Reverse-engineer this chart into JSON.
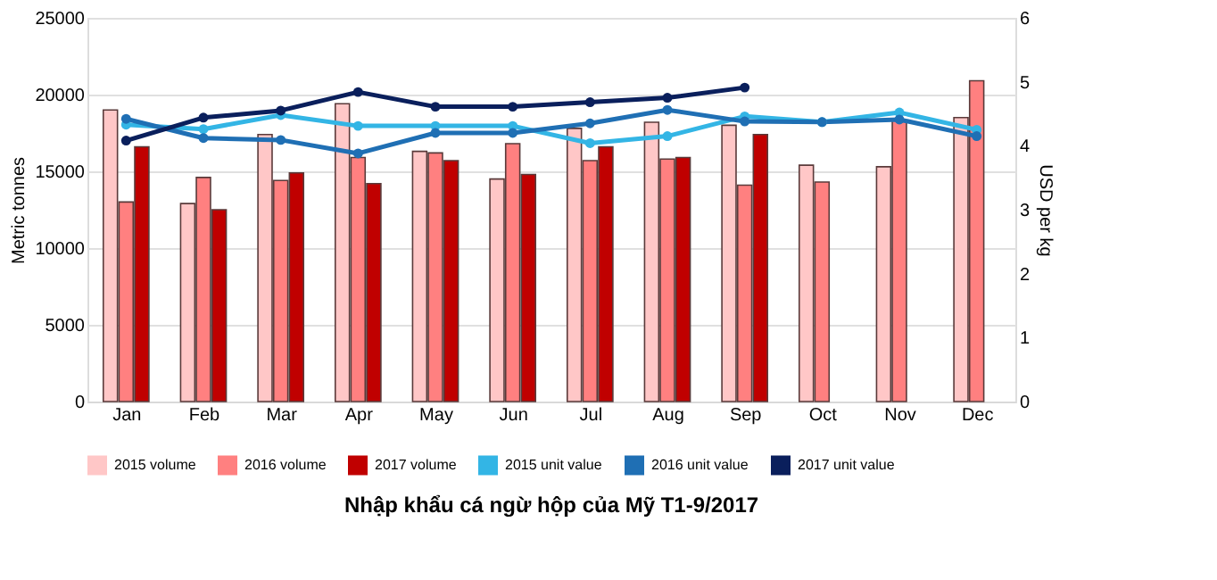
{
  "chart_data": {
    "type": "bar",
    "title": "Nhập khẩu cá ngừ hộp của Mỹ T1-9/2017",
    "categories": [
      "Jan",
      "Feb",
      "Mar",
      "Apr",
      "May",
      "Jun",
      "Jul",
      "Aug",
      "Sep",
      "Oct",
      "Nov",
      "Dec"
    ],
    "series": [
      {
        "name": "2015 volume",
        "color": "#ffc7c7",
        "values": [
          19000,
          12900,
          17400,
          19400,
          16300,
          14500,
          17800,
          18200,
          18000,
          15400,
          15300,
          18500
        ]
      },
      {
        "name": "2016 volume",
        "color": "#ff8080",
        "values": [
          13000,
          14600,
          14400,
          15900,
          16200,
          16800,
          15700,
          15800,
          14100,
          14300,
          18300,
          20900
        ]
      },
      {
        "name": "2017 volume",
        "color": "#c00000",
        "values": [
          16600,
          12500,
          14900,
          14200,
          15700,
          14800,
          16600,
          15900,
          17400,
          null,
          null,
          null
        ]
      },
      {
        "name": "2015 unit value",
        "color": "#33b5e5",
        "type": "line",
        "axis": "y2",
        "values": [
          4.33,
          4.26,
          4.48,
          4.31,
          4.31,
          4.31,
          4.04,
          4.15,
          4.46,
          4.37,
          4.52,
          4.25
        ]
      },
      {
        "name": "2016 unit value",
        "color": "#1f6fb4",
        "type": "line",
        "axis": "y2",
        "values": [
          4.42,
          4.12,
          4.09,
          3.88,
          4.2,
          4.2,
          4.35,
          4.56,
          4.38,
          4.37,
          4.41,
          4.15
        ]
      },
      {
        "name": "2017 unit value",
        "color": "#0a1f5c",
        "type": "line",
        "axis": "y2",
        "values": [
          4.08,
          4.44,
          4.55,
          4.84,
          4.61,
          4.61,
          4.68,
          4.75,
          4.91,
          null,
          null,
          null
        ]
      }
    ],
    "ylabel": "Metric tonnes",
    "y2label": "USD per kg",
    "ylim": [
      0,
      25000
    ],
    "yticks": [
      0,
      5000,
      10000,
      15000,
      20000,
      25000
    ],
    "y2lim": [
      0,
      6
    ],
    "y2ticks": [
      0,
      1,
      2,
      3,
      4,
      5,
      6
    ],
    "grid": "y",
    "legend": "bottom",
    "marker": "circle"
  }
}
